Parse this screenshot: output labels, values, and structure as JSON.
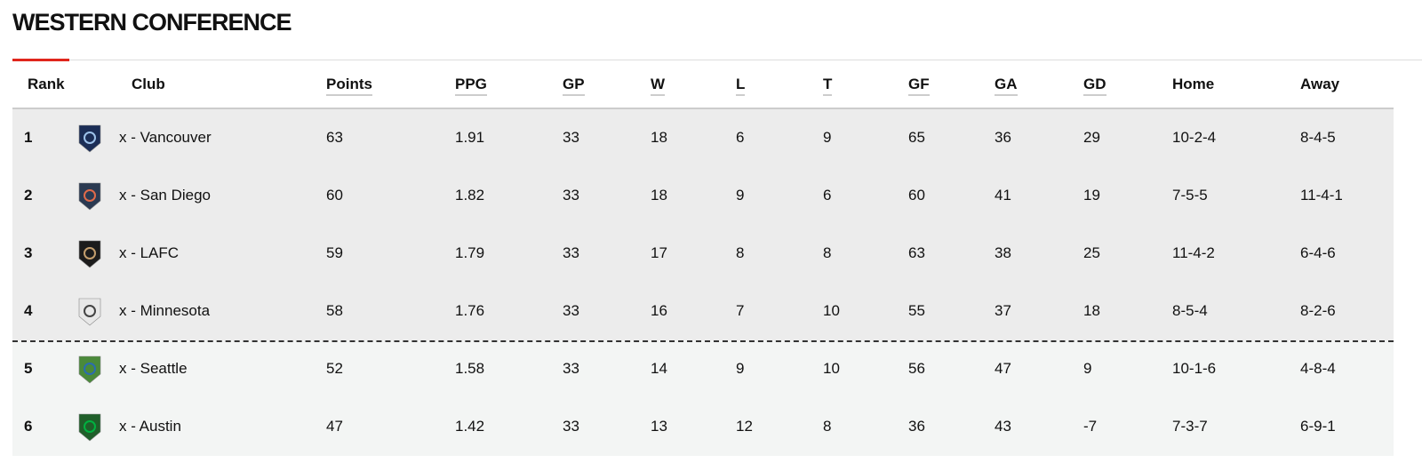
{
  "title": "WESTERN CONFERENCE",
  "table": {
    "columns": [
      "Rank",
      "Club",
      "Points",
      "PPG",
      "GP",
      "W",
      "L",
      "T",
      "GF",
      "GA",
      "GD",
      "Home",
      "Away"
    ],
    "rows": [
      [
        1,
        "x - Vancouver",
        63,
        1.91,
        33,
        18,
        6,
        9,
        65,
        36,
        29,
        "10-2-4",
        "8-4-5"
      ],
      [
        2,
        "x - San Diego",
        60,
        1.82,
        33,
        18,
        9,
        6,
        60,
        41,
        19,
        "7-5-5",
        "11-4-1"
      ],
      [
        3,
        "x - LAFC",
        59,
        1.79,
        33,
        17,
        8,
        8,
        63,
        38,
        25,
        "11-4-2",
        "6-4-6"
      ],
      [
        4,
        "x - Minnesota",
        58,
        1.76,
        33,
        16,
        7,
        10,
        55,
        37,
        18,
        "8-5-4",
        "8-2-6"
      ],
      [
        5,
        "x - Seattle",
        52,
        1.58,
        33,
        14,
        9,
        10,
        56,
        47,
        9,
        "10-1-6",
        "4-8-4"
      ],
      [
        6,
        "x - Austin",
        47,
        1.42,
        33,
        13,
        12,
        8,
        36,
        43,
        -7,
        "7-3-7",
        "6-9-1"
      ]
    ]
  }
}
